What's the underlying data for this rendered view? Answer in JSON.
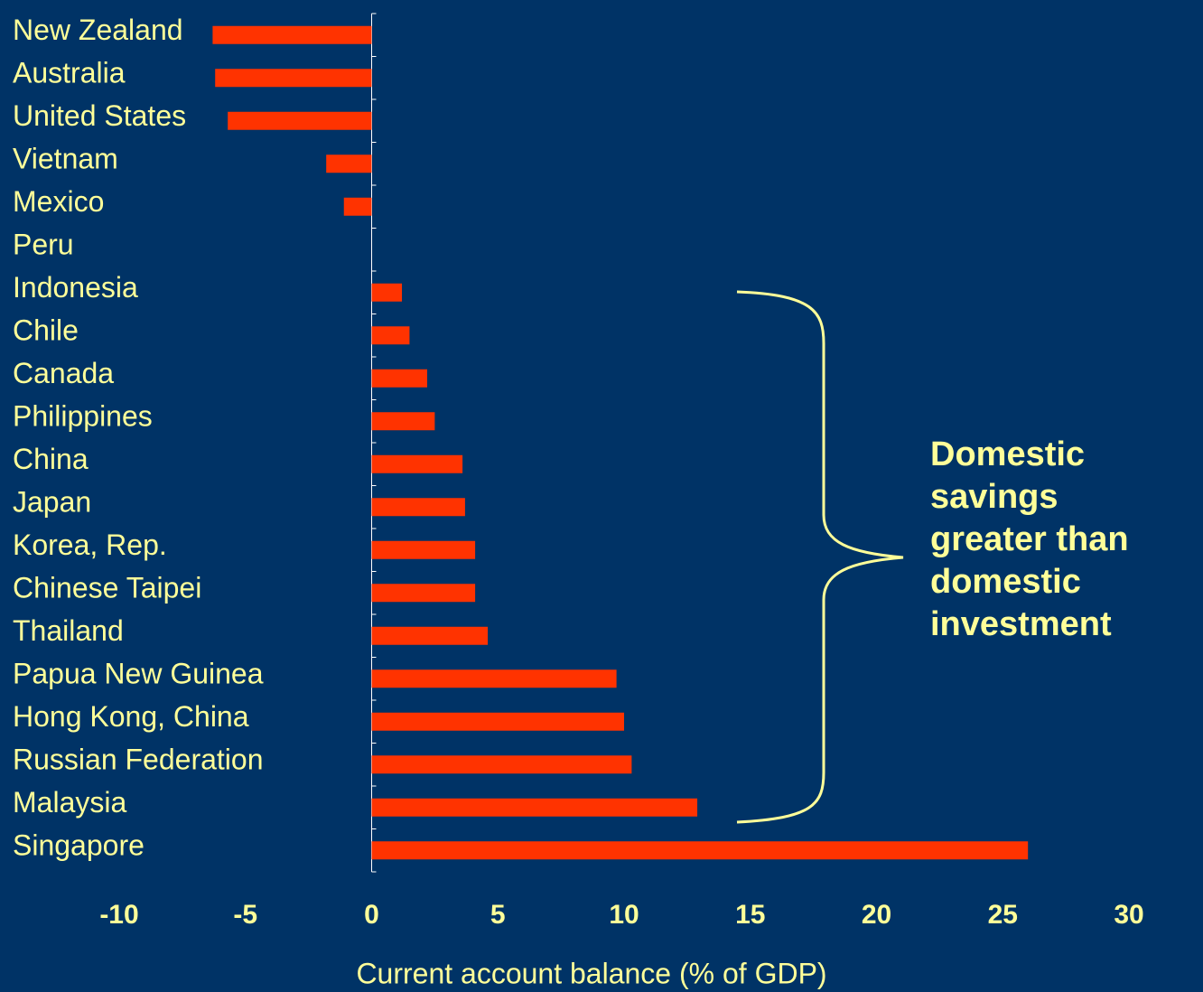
{
  "chart_data": {
    "type": "bar",
    "orientation": "horizontal",
    "categories": [
      "New Zealand",
      "Australia",
      "United States",
      "Vietnam",
      "Mexico",
      "Peru",
      "Indonesia",
      "Chile",
      "Canada",
      "Philippines",
      "China",
      "Japan",
      "Korea, Rep.",
      "Chinese Taipei",
      "Thailand",
      "Papua New Guinea",
      "Hong Kong, China",
      "Russian Federation",
      "Malaysia",
      "Singapore"
    ],
    "values": [
      -6.3,
      -6.2,
      -5.7,
      -1.8,
      -1.1,
      0,
      1.2,
      1.5,
      2.2,
      2.5,
      3.6,
      3.7,
      4.1,
      4.1,
      4.6,
      9.7,
      10,
      10.3,
      12.9,
      26
    ],
    "color": "#ff3300",
    "xlim": [
      -10,
      30
    ],
    "xticks": [
      -10,
      -5,
      0,
      5,
      10,
      15,
      20,
      25,
      30
    ],
    "xlabel": "Current account balance (% of GDP)",
    "annotation": [
      "Domestic",
      "savings",
      "greater than",
      "domestic",
      "investment"
    ],
    "grid": false
  }
}
